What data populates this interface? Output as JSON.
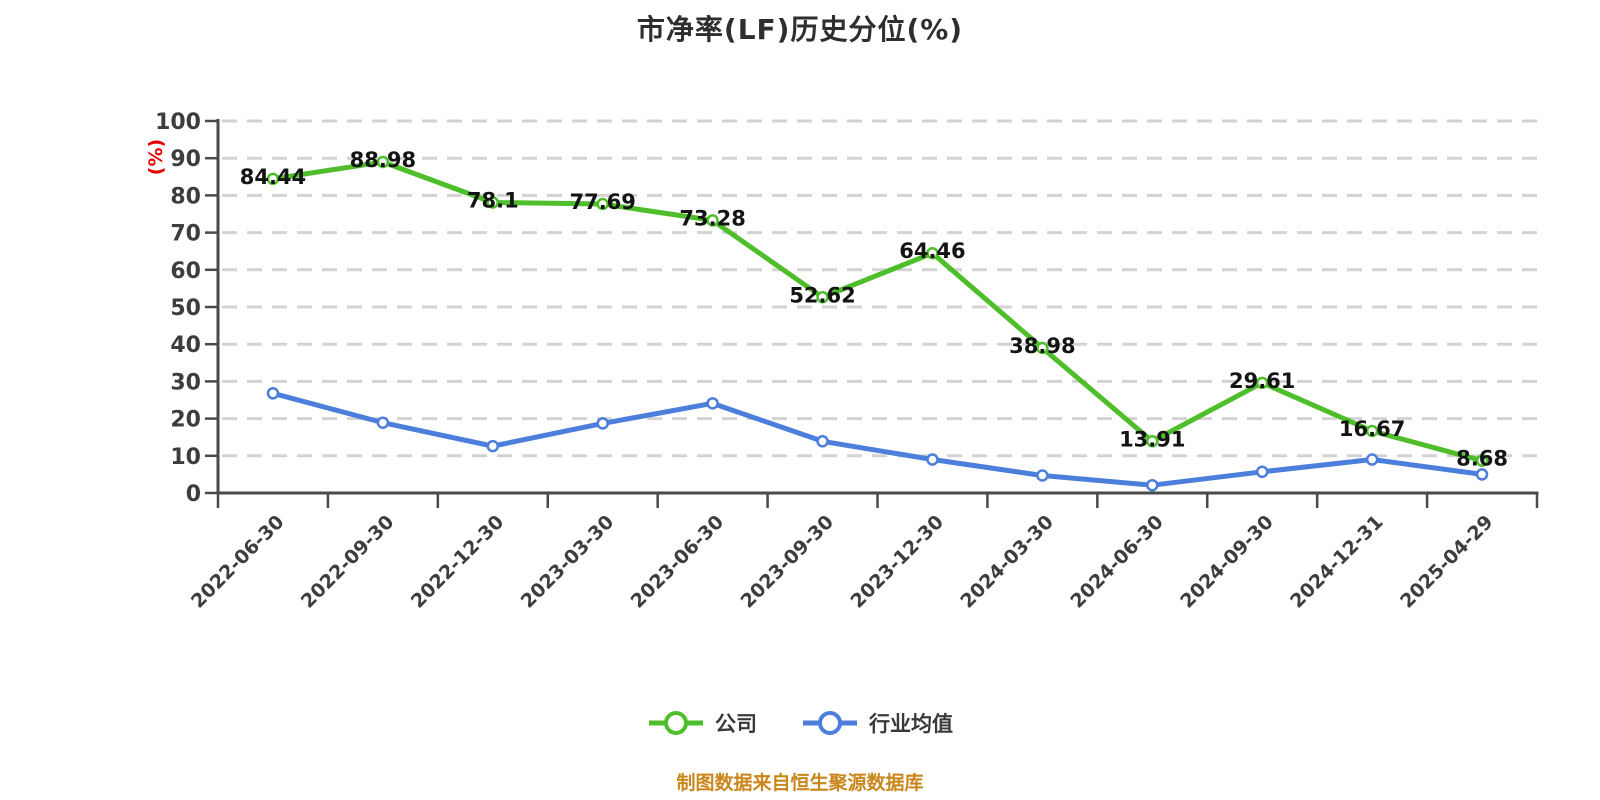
{
  "chart": {
    "title": "市净率(LF)历史分位(%)",
    "footer": "制图数据来自恒生聚源数据库",
    "colors": {
      "company_line": "#4fbe2b",
      "industry_line": "#4c7edc",
      "grid": "#d3d3d3",
      "axis": "#4a4a4a",
      "title_text": "#2e2e2e",
      "axis_name_red": "#e60000",
      "footer_orange": "#c9861b",
      "marker_fill": "#ffffff"
    },
    "legend": {
      "items": [
        {
          "key": "company",
          "label": "公司",
          "color": "#4fbe2b"
        },
        {
          "key": "industry-average",
          "label": "行业均值",
          "color": "#4c7edc"
        }
      ]
    }
  },
  "chart_data": {
    "type": "line",
    "title": "市净率(LF)历史分位(%)",
    "xlabel": "",
    "ylabel": "(%)",
    "ylim": [
      0,
      100
    ],
    "yticks": [
      0,
      10,
      20,
      30,
      40,
      50,
      60,
      70,
      80,
      90,
      100
    ],
    "grid": "horizontal-dashed",
    "legend_position": "bottom",
    "categories": [
      "2022-06-30",
      "2022-09-30",
      "2022-12-30",
      "2023-03-30",
      "2023-06-30",
      "2023-09-30",
      "2023-12-30",
      "2024-03-30",
      "2024-06-30",
      "2024-09-30",
      "2024-12-31",
      "2025-04-29"
    ],
    "series": [
      {
        "key": "company",
        "name": "公司",
        "color": "#4fbe2b",
        "show_labels": true,
        "values": [
          84.44,
          88.98,
          78.1,
          77.69,
          73.28,
          52.62,
          64.46,
          38.98,
          13.91,
          29.61,
          16.67,
          8.68
        ]
      },
      {
        "key": "industry-average",
        "name": "行业均值",
        "color": "#4c7edc",
        "show_labels": false,
        "values": [
          26.8,
          18.9,
          12.6,
          18.7,
          24.1,
          13.9,
          9.0,
          4.7,
          2.1,
          5.7,
          9.0,
          5.0
        ]
      }
    ]
  }
}
